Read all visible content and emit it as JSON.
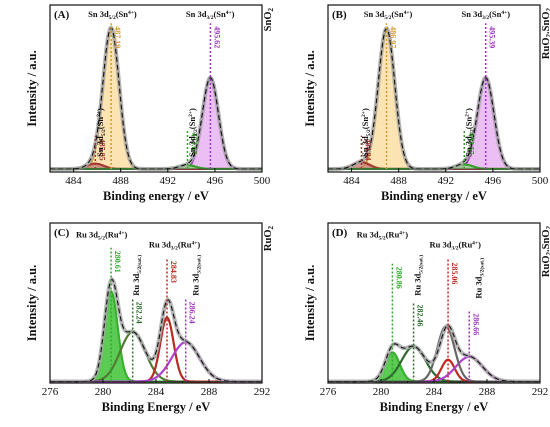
{
  "chart_data": [
    {
      "id": "A",
      "type": "line",
      "panel_label": "(A)",
      "sample_label": {
        "main": "SnO",
        "sub": "2"
      },
      "xlabel": "Binding energy / eV",
      "ylabel": "Intensity / a.u.",
      "xlim": [
        482,
        500
      ],
      "ylim": [
        0,
        1.1
      ],
      "x_ticks": [
        484,
        488,
        492,
        496,
        500
      ],
      "peaks": [
        {
          "center": 487.19,
          "height": 0.925,
          "width": 0.68,
          "color": "#d5a23a",
          "fill": "#fbdfa5"
        },
        {
          "center": 495.62,
          "height": 0.6,
          "width": 0.68,
          "color": "#a033c0",
          "fill": "#e7b3f2"
        },
        {
          "center": 485.85,
          "height": 0.035,
          "width": 0.7,
          "color": "#a43a2f",
          "fill": "#c9857d"
        },
        {
          "center": 493.67,
          "height": 0.025,
          "width": 0.7,
          "color": "#3aa02d",
          "fill": "#98d08d"
        }
      ],
      "baseline": 0.02,
      "annotations": [
        {
          "x": 487.19,
          "value": "487.19",
          "color": "#d59a2a",
          "ytop": 0.98
        },
        {
          "x": 495.62,
          "value": "495.62",
          "color": "#a033c0",
          "ytop": 0.98
        },
        {
          "x": 485.85,
          "value": "485.85",
          "color": "#a43a2f",
          "ytop": 0.24
        },
        {
          "x": 493.67,
          "value": "493.67",
          "color": "#3aa02d",
          "ytop": 0.28
        }
      ],
      "peak_labels": [
        {
          "x": 487.3,
          "y": 1.02,
          "text": "Sn 3d",
          "sub": "5/2",
          "sup_text": "(Sn",
          "sup": "4+",
          "tail": ")",
          "rotate": false
        },
        {
          "x": 495.6,
          "y": 1.02,
          "text": "Sn 3d",
          "sub": "3/2",
          "sup_text": "(Sn",
          "sup": "4+",
          "tail": ")",
          "rotate": false
        },
        {
          "x": 486.5,
          "y": 0.1,
          "text": "Sn 3d",
          "sub": "5/2",
          "sup_text": "(Sn",
          "sup": "2+",
          "tail": ")",
          "rotate": true
        },
        {
          "x": 494.3,
          "y": 0.1,
          "text": "Sn 3d",
          "sub": "3/2",
          "sup_text": "(Sn",
          "sup": "2+",
          "tail": ")",
          "rotate": true
        }
      ]
    },
    {
      "id": "B",
      "type": "line",
      "panel_label": "(B)",
      "sample_label": {
        "main": "RuO",
        "sub": "2",
        "main2": ".SnO",
        "sub2": "2"
      },
      "xlabel": "Binding energy / eV",
      "ylabel": "Intensity / a.u.",
      "xlim": [
        482,
        500
      ],
      "ylim": [
        0,
        1.1
      ],
      "x_ticks": [
        484,
        488,
        492,
        496,
        500
      ],
      "peaks": [
        {
          "center": 486.97,
          "height": 0.925,
          "width": 0.7,
          "color": "#d5a23a",
          "fill": "#fbdfa5"
        },
        {
          "center": 495.39,
          "height": 0.6,
          "width": 0.7,
          "color": "#a033c0",
          "fill": "#e7b3f2"
        },
        {
          "center": 484.84,
          "height": 0.045,
          "width": 0.7,
          "color": "#a43a2f",
          "fill": "#c9857d"
        },
        {
          "center": 493.57,
          "height": 0.03,
          "width": 0.7,
          "color": "#3aa02d",
          "fill": "#98d08d"
        }
      ],
      "baseline": 0.02,
      "annotations": [
        {
          "x": 486.97,
          "value": "486.97",
          "color": "#d59a2a",
          "ytop": 0.98
        },
        {
          "x": 495.39,
          "value": "495.39",
          "color": "#a033c0",
          "ytop": 0.98
        },
        {
          "x": 484.84,
          "value": "484.84",
          "color": "#a43a2f",
          "ytop": 0.24
        },
        {
          "x": 493.57,
          "value": "493.57",
          "color": "#3aa02d",
          "ytop": 0.28
        }
      ],
      "peak_labels": [
        {
          "x": 487.1,
          "y": 1.02,
          "text": "Sn 3d",
          "sub": "5/2",
          "sup_text": "(Sn",
          "sup": "4+",
          "tail": ")",
          "rotate": false
        },
        {
          "x": 495.4,
          "y": 1.02,
          "text": "Sn 3d",
          "sub": "3/2",
          "sup_text": "(Sn",
          "sup": "4+",
          "tail": ")",
          "rotate": false
        },
        {
          "x": 485.4,
          "y": 0.1,
          "text": "Sn 3d",
          "sub": "5/2",
          "sup_text": "(Sn",
          "sup": "2+",
          "tail": ")",
          "rotate": true
        },
        {
          "x": 494.2,
          "y": 0.1,
          "text": "Sn 3d",
          "sub": "3/2",
          "sup_text": "(Sn",
          "sup": "2+",
          "tail": ")",
          "rotate": true
        }
      ]
    },
    {
      "id": "C",
      "type": "line",
      "panel_label": "(C)",
      "sample_label": {
        "main": "RuO",
        "sub": "2"
      },
      "xlabel": "Binding Energy / eV",
      "ylabel": "Intensity / a.u.",
      "xlim": [
        276,
        292
      ],
      "ylim": [
        0,
        1.1
      ],
      "x_ticks": [
        276,
        280,
        284,
        288,
        292
      ],
      "peaks": [
        {
          "center": 280.61,
          "height": 0.62,
          "width": 0.5,
          "color": "#37b12e",
          "fill": "#3fc236"
        },
        {
          "center": 282.24,
          "height": 0.34,
          "width": 0.95,
          "color": "#4f7d34",
          "fill": null
        },
        {
          "center": 284.83,
          "height": 0.44,
          "width": 0.5,
          "color": "#b52b20",
          "fill": null
        },
        {
          "center": 286.24,
          "height": 0.27,
          "width": 1.05,
          "color": "#b040d0",
          "fill": null
        }
      ],
      "baseline": 0.01,
      "annotations": [
        {
          "x": 280.61,
          "value": "280.61",
          "color": "#2fa82a",
          "ytop": 0.93
        },
        {
          "x": 282.24,
          "value": "282.24",
          "color": "#2f6a2f",
          "ytop": 0.58
        },
        {
          "x": 284.83,
          "value": "284.83",
          "color": "#b52b20",
          "ytop": 0.86
        },
        {
          "x": 286.24,
          "value": "286.24",
          "color": "#a033c0",
          "ytop": 0.58
        }
      ],
      "peak_labels": [
        {
          "x": 279.9,
          "y": 1.0,
          "text": "Ru 3d",
          "sub": "5/2",
          "sup_text": "(Ru",
          "sup": "4+",
          "tail": ")",
          "rotate": false
        },
        {
          "x": 285.4,
          "y": 0.93,
          "text": "Ru 3d",
          "sub": "3/2",
          "sup_text": "(Ru",
          "sup": "4+",
          "tail": ")",
          "rotate": false
        },
        {
          "x": 282.7,
          "y": 0.6,
          "text": "Ru 3d",
          "sub": "5/2(sat.)",
          "sup_text": "",
          "sup": "",
          "tail": "",
          "rotate": true
        },
        {
          "x": 287.2,
          "y": 0.6,
          "text": "Ru 3d",
          "sub": "3/2(sat.)",
          "sup_text": "",
          "sup": "",
          "tail": "",
          "rotate": true
        }
      ]
    },
    {
      "id": "D",
      "type": "line",
      "panel_label": "(D)",
      "sample_label": {
        "main": "RuO",
        "sub": "2",
        "main2": ".SnO",
        "sub2": "2"
      },
      "xlabel": "Binding Energy / eV",
      "ylabel": "Intensity / a.u.",
      "xlim": [
        276,
        292
      ],
      "ylim": [
        0,
        1.1
      ],
      "x_ticks": [
        276,
        280,
        284,
        288,
        292
      ],
      "peaks": [
        {
          "center": 280.86,
          "height": 0.2,
          "width": 0.55,
          "color": "#37b12e",
          "fill": "#3fc236"
        },
        {
          "center": 282.46,
          "height": 0.24,
          "width": 0.9,
          "color": "#2f6a2f",
          "fill": null
        },
        {
          "center": 285.06,
          "height": 0.15,
          "width": 0.5,
          "color": "#c0281e",
          "fill": null
        },
        {
          "center": 286.66,
          "height": 0.17,
          "width": 1.0,
          "color": "#b040d0",
          "fill": null
        },
        {
          "center": 284.9,
          "height": 0.38,
          "width": 0.65,
          "color": "#666666",
          "fill": null
        }
      ],
      "baseline": 0.01,
      "annotations": [
        {
          "x": 280.86,
          "value": "280.86",
          "color": "#2fa82a",
          "ytop": 0.82
        },
        {
          "x": 282.46,
          "value": "282.46",
          "color": "#2f6a2f",
          "ytop": 0.56
        },
        {
          "x": 285.06,
          "value": "285.06",
          "color": "#c0281e",
          "ytop": 0.85
        },
        {
          "x": 286.66,
          "value": "286.66",
          "color": "#a033c0",
          "ytop": 0.5
        }
      ],
      "peak_labels": [
        {
          "x": 280.1,
          "y": 1.0,
          "text": "Ru 3d",
          "sub": "5/2",
          "sup_text": "(Ru",
          "sup": "4+",
          "tail": ")",
          "rotate": false
        },
        {
          "x": 285.6,
          "y": 0.93,
          "text": "Ru 3d",
          "sub": "3/2",
          "sup_text": "(Ru",
          "sup": "4+",
          "tail": ")",
          "rotate": false
        },
        {
          "x": 283.0,
          "y": 0.6,
          "text": "Ru 3d",
          "sub": "5/2(sat.)",
          "sup_text": "",
          "sup": "",
          "tail": "",
          "rotate": true
        },
        {
          "x": 287.6,
          "y": 0.58,
          "text": "Ru 3d",
          "sub": "3/2(sat.)",
          "sup_text": "",
          "sup": "",
          "tail": "",
          "rotate": true
        }
      ]
    }
  ]
}
